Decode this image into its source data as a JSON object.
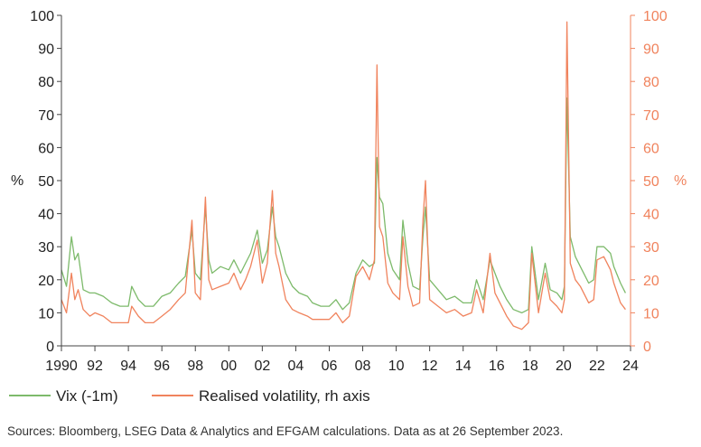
{
  "chart_data": {
    "type": "line",
    "title": "",
    "xlabel": "",
    "ylabel_left": "%",
    "ylabel_right": "%",
    "xlim": [
      1990,
      2024
    ],
    "ylim_left": [
      0,
      100
    ],
    "ylim_right": [
      0,
      100
    ],
    "x_tick_labels": [
      "1990",
      "92",
      "94",
      "96",
      "98",
      "00",
      "02",
      "04",
      "06",
      "08",
      "10",
      "12",
      "14",
      "16",
      "18",
      "20",
      "22",
      "24"
    ],
    "y_ticks_left": [
      "0",
      "10",
      "20",
      "30",
      "40",
      "50",
      "60",
      "70",
      "80",
      "90",
      "100"
    ],
    "y_ticks_right": [
      "0",
      "10",
      "20",
      "30",
      "40",
      "50",
      "60",
      "70",
      "80",
      "90",
      "100"
    ],
    "series": [
      {
        "name": "Vix (-1m)",
        "axis": "left",
        "color": "#7dba6b",
        "x": [
          1990.0,
          1990.3,
          1990.6,
          1990.8,
          1991.0,
          1991.3,
          1991.7,
          1992.0,
          1992.5,
          1993.0,
          1993.5,
          1994.0,
          1994.2,
          1994.6,
          1995.0,
          1995.5,
          1996.0,
          1996.5,
          1997.0,
          1997.4,
          1997.8,
          1998.0,
          1998.3,
          1998.6,
          1998.8,
          1999.0,
          1999.5,
          2000.0,
          2000.3,
          2000.7,
          2001.0,
          2001.3,
          2001.7,
          2002.0,
          2002.3,
          2002.6,
          2002.8,
          2003.0,
          2003.4,
          2003.8,
          2004.2,
          2004.7,
          2005.0,
          2005.5,
          2006.0,
          2006.4,
          2006.8,
          2007.2,
          2007.6,
          2008.0,
          2008.4,
          2008.7,
          2008.85,
          2009.0,
          2009.2,
          2009.5,
          2009.8,
          2010.2,
          2010.4,
          2010.7,
          2011.0,
          2011.4,
          2011.6,
          2011.75,
          2012.0,
          2012.5,
          2013.0,
          2013.5,
          2014.0,
          2014.5,
          2014.8,
          2015.2,
          2015.6,
          2015.9,
          2016.2,
          2016.6,
          2017.0,
          2017.5,
          2017.9,
          2018.1,
          2018.5,
          2018.9,
          2019.2,
          2019.6,
          2019.9,
          2020.05,
          2020.2,
          2020.4,
          2020.7,
          2021.0,
          2021.5,
          2021.8,
          2022.0,
          2022.4,
          2022.8,
          2023.0,
          2023.4,
          2023.7
        ],
        "values": [
          23,
          18,
          33,
          26,
          28,
          17,
          16,
          16,
          15,
          13,
          12,
          12,
          18,
          14,
          12,
          12,
          15,
          16,
          19,
          21,
          35,
          22,
          20,
          42,
          26,
          22,
          24,
          23,
          26,
          22,
          25,
          28,
          35,
          25,
          29,
          42,
          33,
          30,
          22,
          18,
          16,
          15,
          13,
          12,
          12,
          14,
          11,
          13,
          22,
          26,
          24,
          25,
          57,
          45,
          43,
          28,
          23,
          20,
          38,
          25,
          18,
          17,
          33,
          42,
          20,
          17,
          14,
          15,
          13,
          13,
          20,
          14,
          26,
          22,
          18,
          14,
          11,
          10,
          11,
          30,
          14,
          25,
          17,
          16,
          14,
          18,
          75,
          33,
          27,
          24,
          19,
          20,
          30,
          30,
          28,
          24,
          19,
          16
        ]
      },
      {
        "name": "Realised volatility, rh axis",
        "axis": "right",
        "color": "#f0835d",
        "x": [
          1990.0,
          1990.3,
          1990.6,
          1990.8,
          1991.0,
          1991.3,
          1991.7,
          1992.0,
          1992.5,
          1993.0,
          1993.5,
          1994.0,
          1994.2,
          1994.6,
          1995.0,
          1995.5,
          1996.0,
          1996.5,
          1997.0,
          1997.4,
          1997.8,
          1998.0,
          1998.3,
          1998.6,
          1998.8,
          1999.0,
          1999.5,
          2000.0,
          2000.3,
          2000.7,
          2001.0,
          2001.3,
          2001.7,
          2002.0,
          2002.3,
          2002.6,
          2002.8,
          2003.0,
          2003.4,
          2003.8,
          2004.2,
          2004.7,
          2005.0,
          2005.5,
          2006.0,
          2006.4,
          2006.8,
          2007.2,
          2007.6,
          2008.0,
          2008.4,
          2008.7,
          2008.85,
          2009.0,
          2009.2,
          2009.5,
          2009.8,
          2010.2,
          2010.4,
          2010.7,
          2011.0,
          2011.4,
          2011.6,
          2011.75,
          2012.0,
          2012.5,
          2013.0,
          2013.5,
          2014.0,
          2014.5,
          2014.8,
          2015.2,
          2015.6,
          2015.9,
          2016.2,
          2016.6,
          2017.0,
          2017.5,
          2017.9,
          2018.1,
          2018.5,
          2018.9,
          2019.2,
          2019.6,
          2019.9,
          2020.05,
          2020.2,
          2020.4,
          2020.7,
          2021.0,
          2021.5,
          2021.8,
          2022.0,
          2022.4,
          2022.8,
          2023.0,
          2023.4,
          2023.7
        ],
        "values": [
          14,
          10,
          22,
          14,
          17,
          11,
          9,
          10,
          9,
          7,
          7,
          7,
          12,
          9,
          7,
          7,
          9,
          11,
          14,
          16,
          38,
          16,
          14,
          45,
          20,
          17,
          18,
          19,
          22,
          17,
          20,
          24,
          32,
          19,
          25,
          47,
          28,
          24,
          14,
          11,
          10,
          9,
          8,
          8,
          8,
          10,
          7,
          9,
          21,
          24,
          20,
          26,
          85,
          36,
          33,
          19,
          16,
          14,
          33,
          18,
          12,
          13,
          38,
          50,
          14,
          12,
          10,
          11,
          9,
          10,
          17,
          10,
          28,
          16,
          13,
          9,
          6,
          5,
          7,
          28,
          10,
          22,
          14,
          12,
          10,
          14,
          98,
          25,
          20,
          18,
          13,
          14,
          26,
          27,
          23,
          19,
          13,
          11
        ]
      }
    ],
    "legend": [
      {
        "label": "Vix (-1m)",
        "color": "#7dba6b"
      },
      {
        "label": "Realised volatility, rh axis",
        "color": "#f0835d"
      }
    ],
    "legend_position": "bottom-left",
    "grid": false
  },
  "footer": {
    "source": "Sources: Bloomberg, LSEG Data & Analytics and EFGAM calculations. Data as at 26 September 2023."
  }
}
